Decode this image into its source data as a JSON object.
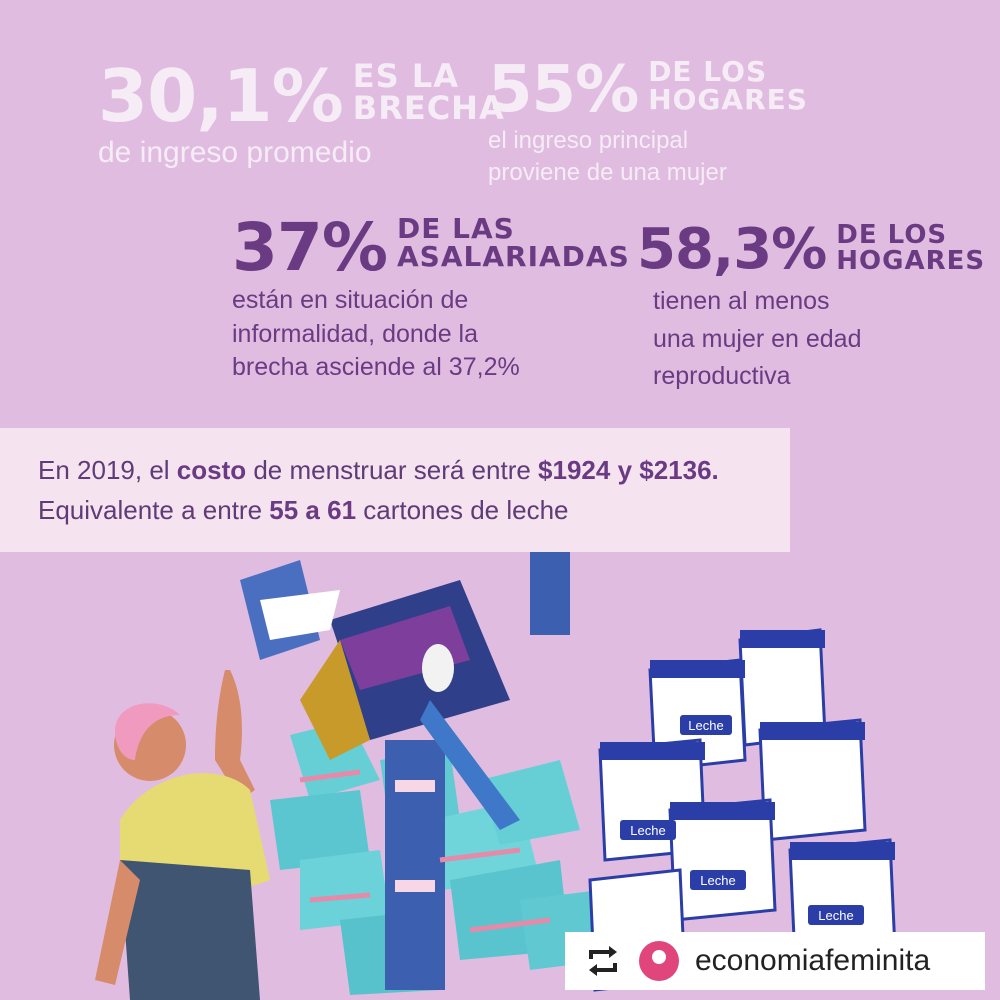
{
  "stats": [
    {
      "value": "30,1%",
      "head1": "ES LA",
      "head2": "BRECHA",
      "lines": [
        "de ingreso promedio"
      ]
    },
    {
      "value": "55%",
      "head1": "DE LOS",
      "head2": "HOGARES",
      "lines": [
        "el ingreso principal",
        "proviene de una mujer"
      ]
    },
    {
      "value": "37%",
      "head1": "DE LAS",
      "head2": "ASALARIADAS",
      "lines": [
        "están en situación de",
        "informalidad, donde la",
        "brecha asciende al 37,2%"
      ]
    },
    {
      "value": "58,3%",
      "head1": "DE LOS",
      "head2": "HOGARES",
      "lines": [
        "tienen al menos",
        "una mujer en edad",
        "reproductiva"
      ]
    }
  ],
  "cost": {
    "l1a": "En 2019, el ",
    "l1b": "costo",
    "l1c": " de menstruar será entre ",
    "l1d": "$1924 y $2136.",
    "l2a": "Equivalente a entre ",
    "l2b": "55 a 61",
    "l2c": " cartones de leche"
  },
  "illustration": {
    "carton_label": "Leche"
  },
  "footer": {
    "handle": "economiafeminita",
    "repost_icon": "repost-icon",
    "logo_icon": "megaphone-logo"
  },
  "colors": {
    "background": "#e0bde0",
    "accent": "#6a3b82",
    "light_text": "#f6ecf6",
    "box": "#f5e3f0"
  }
}
